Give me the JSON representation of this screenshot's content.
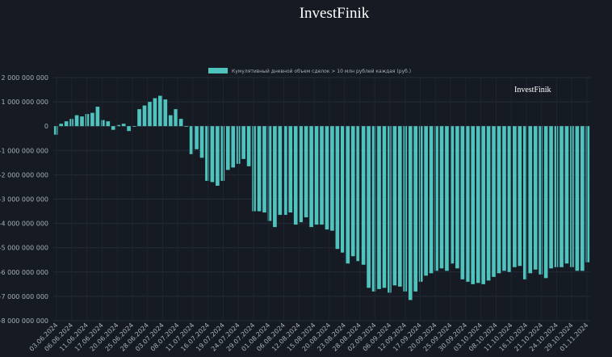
{
  "brand": {
    "title": "InvestFinik",
    "watermark": "InvestFinik"
  },
  "chart_data": {
    "type": "bar",
    "title": "InvestFinik",
    "legend": "Кумулятивный дневной объем сделок > 10 млн рублей каждая (руб.)",
    "legend_position": "top-center",
    "color": "#4fc3be",
    "ylim": [
      -8000000000,
      2000000000
    ],
    "yticks": [
      2000000000,
      1000000000,
      0,
      -1000000000,
      -2000000000,
      -3000000000,
      -4000000000,
      -5000000000,
      -6000000000,
      -7000000000,
      -8000000000
    ],
    "ytick_labels": [
      "2 000 000 000",
      "1 000 000 000",
      "0",
      "-1 000 000 000",
      "-2 000 000 000",
      "-3 000 000 000",
      "-4 000 000 000",
      "-5 000 000 000",
      "-6 000 000 000",
      "-7 000 000 000",
      "-8 000 000 000"
    ],
    "xtick_labels": [
      "03.06.2024",
      "06.06.2024",
      "11.06.2024",
      "17.06.2024",
      "20.06.2024",
      "25.06.2024",
      "28.06.2024",
      "03.07.2024",
      "08.07.2024",
      "11.07.2024",
      "16.07.2024",
      "19.07.2024",
      "24.07.2024",
      "29.07.2024",
      "01.08.2024",
      "06.08.2024",
      "12.08.2024",
      "15.08.2024",
      "20.08.2024",
      "23.08.2024",
      "28.08.2024",
      "02.09.2024",
      "06.09.2024",
      "12.09.2024",
      "17.09.2024",
      "20.09.2024",
      "25.09.2024",
      "30.09.2024",
      "03.10.2024",
      "08.10.2024",
      "11.10.2024",
      "16.10.2024",
      "21.10.2024",
      "24.10.2024",
      "29.10.2024",
      "01.11.2024"
    ],
    "values": [
      -350000000,
      100000000,
      200000000,
      300000000,
      450000000,
      400000000,
      500000000,
      550000000,
      800000000,
      250000000,
      200000000,
      -150000000,
      50000000,
      100000000,
      -200000000,
      0,
      700000000,
      850000000,
      1000000000,
      1150000000,
      1250000000,
      1100000000,
      450000000,
      700000000,
      300000000,
      0,
      -1150000000,
      -950000000,
      -1300000000,
      -2250000000,
      -2300000000,
      -2450000000,
      -2250000000,
      -1800000000,
      -1700000000,
      -1550000000,
      -1350000000,
      -1650000000,
      -3500000000,
      -3500000000,
      -3550000000,
      -3900000000,
      -4150000000,
      -3650000000,
      -3650000000,
      -3550000000,
      -4050000000,
      -3950000000,
      -3750000000,
      -4150000000,
      -4050000000,
      -4050000000,
      -4250000000,
      -4300000000,
      -5050000000,
      -5200000000,
      -5650000000,
      -5350000000,
      -5550000000,
      -5700000000,
      -6650000000,
      -6800000000,
      -6700000000,
      -6650000000,
      -6850000000,
      -6550000000,
      -6600000000,
      -6800000000,
      -7150000000,
      -6800000000,
      -6400000000,
      -6150000000,
      -6050000000,
      -5950000000,
      -5850000000,
      -5950000000,
      -5650000000,
      -5850000000,
      -6300000000,
      -6400000000,
      -6500000000,
      -6450000000,
      -6500000000,
      -6350000000,
      -6200000000,
      -6050000000,
      -5950000000,
      -6000000000,
      -5800000000,
      -5750000000,
      -6300000000,
      -6050000000,
      -5900000000,
      -6100000000,
      -6250000000,
      -5850000000,
      -5800000000,
      -5800000000,
      -5650000000,
      -5800000000,
      -5950000000,
      -5950000000,
      -5600000000
    ]
  }
}
